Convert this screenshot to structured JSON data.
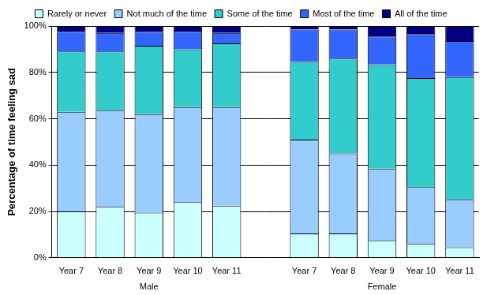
{
  "chart_data": {
    "type": "bar",
    "stacked": true,
    "grid": true,
    "legend": "top",
    "y_label": "Percentage of time feeling sad",
    "categories": [
      "Year 7",
      "Year 8",
      "Year 9",
      "Year 10",
      "Year 11",
      null,
      "Year 7",
      "Year 8",
      "Year 9",
      "Year 10",
      "Year 11"
    ],
    "groups": [
      "Male",
      "Female"
    ],
    "ylim": [
      0,
      100
    ],
    "yticks": [
      {
        "value": 0,
        "label": "0%"
      },
      {
        "value": 20,
        "label": "20%"
      },
      {
        "value": 40,
        "label": "40%"
      },
      {
        "value": 60,
        "label": "60%"
      },
      {
        "value": 80,
        "label": "80%"
      },
      {
        "value": 100,
        "label": "100%"
      }
    ],
    "series": [
      {
        "name": "Rarely or never",
        "color": "#ccffff",
        "values": [
          20,
          22,
          19.5,
          24,
          22.5,
          null,
          10.5,
          10.5,
          7.5,
          6,
          4.5
        ]
      },
      {
        "name": "Not much of the time",
        "color": "#99ccff",
        "values": [
          43,
          41.5,
          42.5,
          41,
          42.5,
          null,
          40.5,
          34.5,
          31,
          24.5,
          20.5
        ]
      },
      {
        "name": "Some of the time",
        "color": "#33cccc",
        "values": [
          26,
          25.5,
          29.5,
          25,
          27.5,
          null,
          33.5,
          41,
          45,
          47,
          53
        ]
      },
      {
        "name": "Most of the time",
        "color": "#3366ff",
        "values": [
          8.5,
          8,
          6,
          7.5,
          4.5,
          null,
          14,
          12.5,
          12,
          19,
          15.5
        ]
      },
      {
        "name": "All of the time",
        "color": "#000080",
        "values": [
          2.5,
          3,
          2.5,
          2.5,
          3,
          null,
          1.5,
          1.5,
          4.5,
          3.5,
          6.5
        ]
      }
    ]
  }
}
